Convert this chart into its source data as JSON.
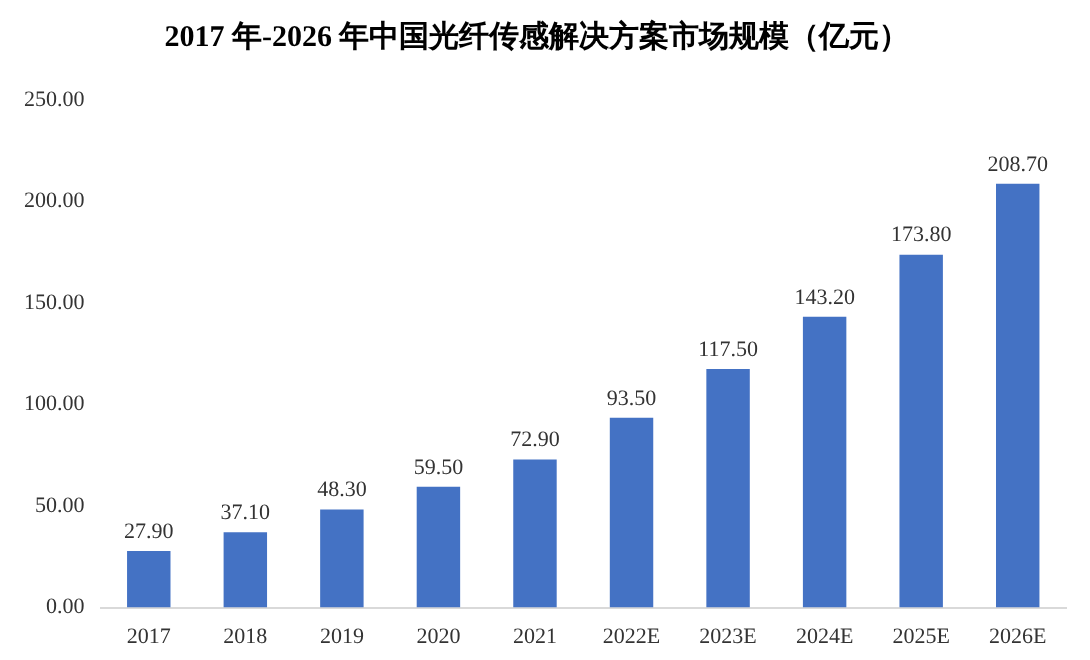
{
  "chart_data": {
    "type": "bar",
    "title": "2017 年-2026 年中国光纤传感解决方案市场规模（亿元）",
    "categories": [
      "2017",
      "2018",
      "2019",
      "2020",
      "2021",
      "2022E",
      "2023E",
      "2024E",
      "2025E",
      "2026E"
    ],
    "values": [
      27.9,
      37.1,
      48.3,
      59.5,
      72.9,
      93.5,
      117.5,
      143.2,
      173.8,
      208.7
    ],
    "value_labels": [
      "27.90",
      "37.10",
      "48.30",
      "59.50",
      "72.90",
      "93.50",
      "117.50",
      "143.20",
      "173.80",
      "208.70"
    ],
    "color": "#4472c4",
    "ylim": [
      0,
      250
    ],
    "yticks": [
      {
        "value": 0,
        "label": "0.00"
      },
      {
        "value": 50,
        "label": "50.00"
      },
      {
        "value": 100,
        "label": "100.00"
      },
      {
        "value": 150,
        "label": "150.00"
      },
      {
        "value": 200,
        "label": "200.00"
      },
      {
        "value": 250,
        "label": "250.00"
      }
    ],
    "grid": false,
    "legend": false
  }
}
